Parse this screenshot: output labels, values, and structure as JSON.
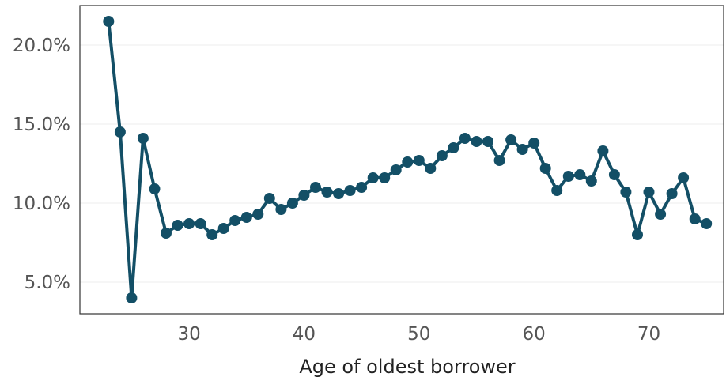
{
  "chart_data": {
    "type": "line",
    "title": "",
    "xlabel": "Age of oldest borrower",
    "ylabel": "",
    "xlim": [
      20.5,
      76.5
    ],
    "ylim": [
      3.0,
      22.5
    ],
    "xticks": [
      30,
      40,
      50,
      60,
      70
    ],
    "xtick_labels": [
      "30",
      "40",
      "50",
      "60",
      "70"
    ],
    "yticks": [
      5,
      10,
      15,
      20
    ],
    "ytick_labels": [
      "5.0%",
      "10.0%",
      "15.0%",
      "20.0%"
    ],
    "grid": "horizontal",
    "legend": "none",
    "colors": {
      "series": "#134f66",
      "grid": "#ececec"
    },
    "series": [
      {
        "x": [
          23,
          24,
          25,
          26,
          27,
          28,
          29,
          30,
          31,
          32,
          33,
          34,
          35,
          36,
          37,
          38,
          39,
          40,
          41,
          42,
          43,
          44,
          45,
          46,
          47,
          48,
          49,
          50,
          51,
          52,
          53,
          54,
          55,
          56,
          57,
          58,
          59,
          60,
          61,
          62,
          63,
          64,
          65,
          66,
          67,
          68,
          69,
          70,
          71,
          72,
          73,
          74,
          75
        ],
        "values": [
          21.5,
          14.5,
          4.0,
          14.1,
          10.9,
          8.1,
          8.6,
          8.7,
          8.7,
          8.0,
          8.4,
          8.9,
          9.1,
          9.3,
          10.3,
          9.6,
          10.0,
          10.5,
          11.0,
          10.7,
          10.6,
          10.8,
          11.0,
          11.6,
          11.6,
          12.1,
          12.6,
          12.7,
          12.2,
          13.0,
          13.5,
          14.1,
          13.9,
          13.9,
          12.7,
          14.0,
          13.4,
          13.8,
          12.2,
          10.8,
          11.7,
          11.8,
          11.4,
          13.3,
          11.8,
          10.7,
          8.0,
          10.7,
          9.3,
          10.6,
          11.6,
          9.0,
          8.7
        ]
      }
    ]
  }
}
